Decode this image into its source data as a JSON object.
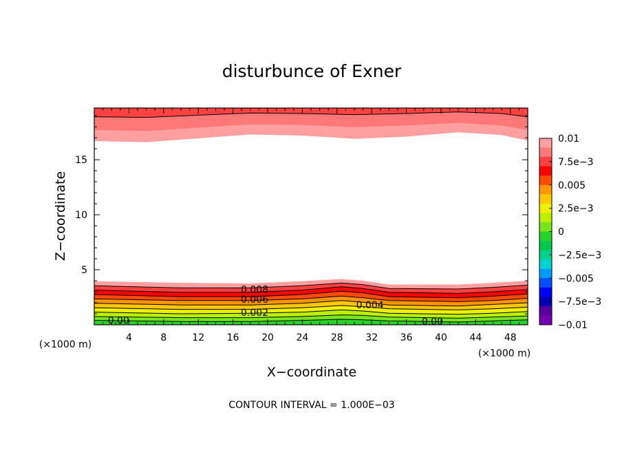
{
  "chart_data": {
    "type": "contour",
    "title": "disturbunce of Exner",
    "xlabel": "X−coordinate",
    "ylabel": "Z−coordinate",
    "x_unit_left": "(×1000 m)",
    "x_unit_right": "(×1000 m)",
    "xlim": [
      0,
      50
    ],
    "ylim": [
      0,
      19.7
    ],
    "xticks": [
      "4",
      "8",
      "12",
      "16",
      "20",
      "24",
      "28",
      "32",
      "36",
      "40",
      "44",
      "48"
    ],
    "yticks": [
      "5",
      "10",
      "15"
    ],
    "contour_interval_note": "CONTOUR INTERVAL = 1.000E−03",
    "contour_labels": [
      {
        "text": "0.008",
        "x": 18.5,
        "z": 2.9
      },
      {
        "text": "0.006",
        "x": 18.5,
        "z": 2.0
      },
      {
        "text": "0.004",
        "x": 31.8,
        "z": 1.5
      },
      {
        "text": "0.002",
        "x": 18.5,
        "z": 0.8
      },
      {
        "text": "0.00",
        "x": 2.8,
        "z": 0.1
      },
      {
        "text": "0.00",
        "x": 39.0,
        "z": 0.0
      }
    ],
    "colorbar": {
      "labels": [
        "0.01",
        "7.5e−3",
        "0.005",
        "2.5e−3",
        "0",
        "−2.5e−3",
        "−0.005",
        "−7.5e−3",
        "−0.01"
      ],
      "colors": [
        "#ff9f9f",
        "#ff7878",
        "#ff4141",
        "#ff0000",
        "#ff4a00",
        "#ff9500",
        "#ffc800",
        "#eef000",
        "#bbf000",
        "#78e61e",
        "#28d228",
        "#00c84b",
        "#00d28c",
        "#00d2d2",
        "#009bff",
        "#0050ff",
        "#0000ff",
        "#0000b4",
        "#5a00a0",
        "#7800b4"
      ]
    },
    "bottom_boundaries": [
      [
        [
          0,
          3.95
        ],
        [
          10,
          3.8
        ],
        [
          18,
          3.75
        ],
        [
          24,
          3.95
        ],
        [
          28.5,
          4.15
        ],
        [
          31,
          4.0
        ],
        [
          34,
          3.65
        ],
        [
          42,
          3.65
        ],
        [
          46,
          3.8
        ],
        [
          50,
          4.0
        ]
      ],
      [
        [
          0,
          3.55
        ],
        [
          10,
          3.35
        ],
        [
          18,
          3.35
        ],
        [
          24,
          3.55
        ],
        [
          28.5,
          3.8
        ],
        [
          31,
          3.65
        ],
        [
          34,
          3.3
        ],
        [
          42,
          3.25
        ],
        [
          46,
          3.4
        ],
        [
          50,
          3.6
        ]
      ],
      [
        [
          0,
          3.15
        ],
        [
          10,
          2.95
        ],
        [
          18,
          2.95
        ],
        [
          24,
          3.15
        ],
        [
          28.5,
          3.45
        ],
        [
          31,
          3.3
        ],
        [
          34,
          2.95
        ],
        [
          42,
          2.85
        ],
        [
          46,
          3.0
        ],
        [
          50,
          3.2
        ]
      ],
      [
        [
          0,
          2.75
        ],
        [
          10,
          2.55
        ],
        [
          18,
          2.55
        ],
        [
          24,
          2.75
        ],
        [
          28.5,
          3.05
        ],
        [
          31,
          2.9
        ],
        [
          34,
          2.55
        ],
        [
          42,
          2.45
        ],
        [
          46,
          2.6
        ],
        [
          50,
          2.8
        ]
      ],
      [
        [
          0,
          2.35
        ],
        [
          10,
          2.2
        ],
        [
          18,
          2.2
        ],
        [
          24,
          2.35
        ],
        [
          28.5,
          2.6
        ],
        [
          31,
          2.45
        ],
        [
          34,
          2.2
        ],
        [
          42,
          2.1
        ],
        [
          46,
          2.2
        ],
        [
          50,
          2.4
        ]
      ],
      [
        [
          0,
          1.95
        ],
        [
          10,
          1.8
        ],
        [
          18,
          1.8
        ],
        [
          24,
          1.95
        ],
        [
          28.5,
          2.2
        ],
        [
          31,
          2.05
        ],
        [
          34,
          1.8
        ],
        [
          42,
          1.7
        ],
        [
          46,
          1.85
        ],
        [
          50,
          2.0
        ]
      ],
      [
        [
          0,
          1.55
        ],
        [
          10,
          1.4
        ],
        [
          18,
          1.4
        ],
        [
          24,
          1.55
        ],
        [
          28.5,
          1.75
        ],
        [
          31,
          1.65
        ],
        [
          34,
          1.45
        ],
        [
          42,
          1.35
        ],
        [
          46,
          1.45
        ],
        [
          50,
          1.6
        ]
      ],
      [
        [
          0,
          1.15
        ],
        [
          10,
          1.0
        ],
        [
          18,
          1.05
        ],
        [
          24,
          1.15
        ],
        [
          28.5,
          1.35
        ],
        [
          31,
          1.25
        ],
        [
          34,
          1.05
        ],
        [
          42,
          0.95
        ],
        [
          46,
          1.05
        ],
        [
          50,
          1.2
        ]
      ],
      [
        [
          0,
          0.75
        ],
        [
          10,
          0.65
        ],
        [
          18,
          0.65
        ],
        [
          24,
          0.75
        ],
        [
          28.5,
          0.9
        ],
        [
          31,
          0.85
        ],
        [
          34,
          0.7
        ],
        [
          42,
          0.6
        ],
        [
          46,
          0.7
        ],
        [
          50,
          0.8
        ]
      ],
      [
        [
          0,
          0.4
        ],
        [
          10,
          0.3
        ],
        [
          18,
          0.3
        ],
        [
          24,
          0.4
        ],
        [
          28.5,
          0.5
        ],
        [
          31,
          0.45
        ],
        [
          34,
          0.35
        ],
        [
          42,
          0.25
        ],
        [
          46,
          0.35
        ],
        [
          50,
          0.45
        ]
      ]
    ],
    "bottom_colors": [
      "#ff9f9f",
      "#ff7878",
      "#ff4141",
      "#ff0000",
      "#ff4a00",
      "#ff9500",
      "#ffc800",
      "#eef000",
      "#bbf000",
      "#78e61e",
      "#28d228"
    ],
    "top_boundaries": [
      [
        [
          0,
          16.7
        ],
        [
          6,
          16.6
        ],
        [
          12,
          16.95
        ],
        [
          18,
          17.3
        ],
        [
          24,
          17.2
        ],
        [
          30,
          16.9
        ],
        [
          36,
          17.1
        ],
        [
          42,
          17.5
        ],
        [
          47,
          17.25
        ],
        [
          50,
          16.75
        ]
      ],
      [
        [
          0,
          17.7
        ],
        [
          6,
          17.6
        ],
        [
          12,
          17.9
        ],
        [
          18,
          18.2
        ],
        [
          24,
          18.15
        ],
        [
          30,
          17.95
        ],
        [
          36,
          18.1
        ],
        [
          42,
          18.35
        ],
        [
          47,
          18.1
        ],
        [
          50,
          17.7
        ]
      ],
      [
        [
          0,
          18.9
        ],
        [
          6,
          18.85
        ],
        [
          12,
          19.05
        ],
        [
          18,
          19.25
        ],
        [
          24,
          19.2
        ],
        [
          30,
          19.1
        ],
        [
          36,
          19.2
        ],
        [
          42,
          19.35
        ],
        [
          47,
          19.2
        ],
        [
          50,
          18.9
        ]
      ]
    ],
    "top_colors": [
      "#ff9f9f",
      "#ff7878",
      "#ff4141"
    ]
  }
}
